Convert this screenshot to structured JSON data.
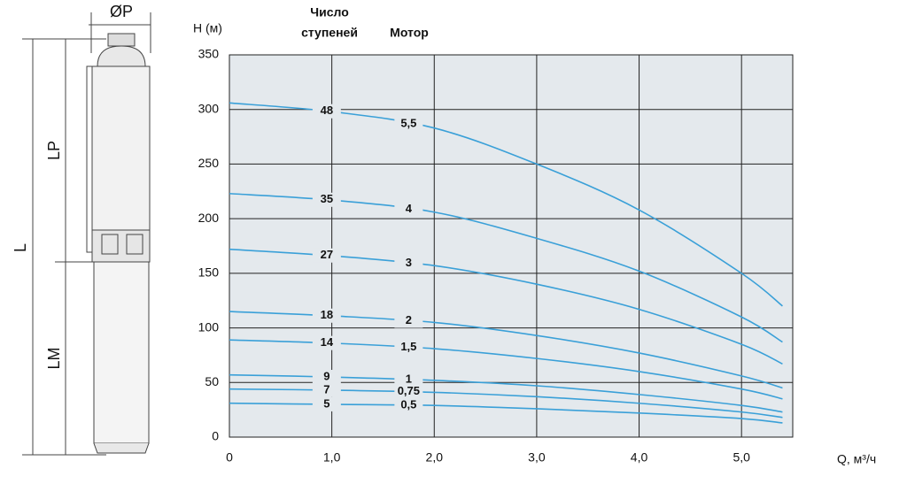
{
  "drawing": {
    "diameter_label": "ØP",
    "lp_label": "LP",
    "l_label": "L",
    "lm_label": "LM"
  },
  "chart_data": {
    "type": "line",
    "y_label": "H (м)",
    "x_label": "Q, м³/ч",
    "stages_header": [
      "Число",
      "ступеней"
    ],
    "motor_header": "Мотор",
    "x": [
      0,
      1,
      2,
      3,
      4,
      5,
      5.4
    ],
    "xlim": [
      0,
      5.5
    ],
    "ylim": [
      0,
      350
    ],
    "xticks": [
      0,
      {
        "value": 1,
        "label": "1,0"
      },
      {
        "value": 2,
        "label": "2,0"
      },
      {
        "value": 3,
        "label": "3,0"
      },
      {
        "value": 4,
        "label": "4,0"
      },
      {
        "value": 5,
        "label": "5,0"
      }
    ],
    "yticks": [
      0,
      50,
      100,
      150,
      200,
      250,
      300,
      350
    ],
    "grid": true,
    "series": [
      {
        "name": "48",
        "motor": "5,5",
        "color": "#3aa0d8",
        "values": [
          306,
          298,
          283,
          250,
          208,
          150,
          120
        ]
      },
      {
        "name": "35",
        "motor": "4",
        "color": "#3aa0d8",
        "values": [
          223,
          217,
          206,
          182,
          152,
          110,
          87
        ]
      },
      {
        "name": "27",
        "motor": "3",
        "color": "#3aa0d8",
        "values": [
          172,
          166,
          157,
          140,
          117,
          85,
          67
        ]
      },
      {
        "name": "18",
        "motor": "2",
        "color": "#3aa0d8",
        "values": [
          115,
          111,
          105,
          93,
          77,
          56,
          45
        ]
      },
      {
        "name": "14",
        "motor": "1,5",
        "color": "#3aa0d8",
        "values": [
          89,
          86,
          81,
          72,
          60,
          44,
          35
        ]
      },
      {
        "name": "9",
        "motor": "1",
        "color": "#3aa0d8",
        "values": [
          57,
          55,
          52,
          47,
          39,
          29,
          23
        ]
      },
      {
        "name": "7",
        "motor": "0,75",
        "color": "#3aa0d8",
        "values": [
          44,
          43,
          41,
          37,
          31,
          23,
          18
        ]
      },
      {
        "name": "5",
        "motor": "0,5",
        "color": "#3aa0d8",
        "values": [
          31,
          30,
          29,
          26,
          22,
          17,
          13
        ]
      }
    ]
  }
}
